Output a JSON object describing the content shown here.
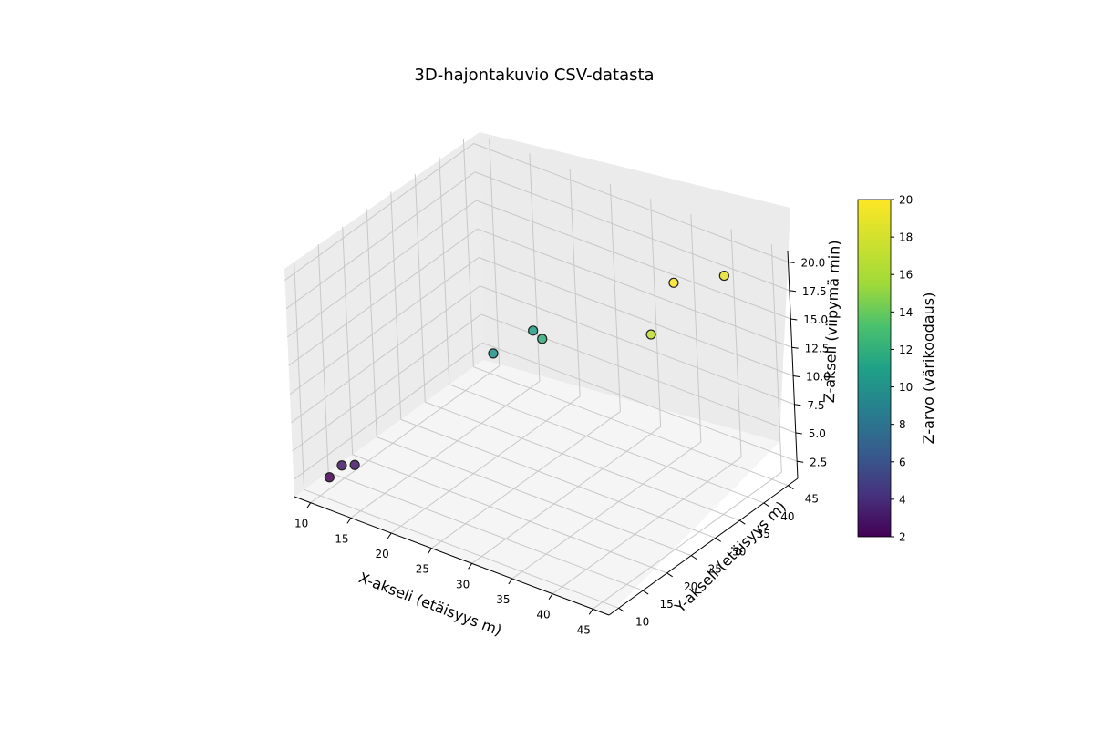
{
  "chart_data": {
    "type": "scatter",
    "title": "3D-hajontakuvio CSV-datasta",
    "xlabel": "X-akseli (etäisyys m)",
    "ylabel": "Y-akseli (etäisyys m)",
    "zlabel": "Z-akseli (viipymä min)",
    "colorbar_label": "Z-arvo (värikoodaus)",
    "xlim": [
      8,
      47
    ],
    "ylim": [
      8,
      47
    ],
    "zlim": [
      1,
      21
    ],
    "clim": [
      2,
      20
    ],
    "x_ticks": [
      10,
      15,
      20,
      25,
      30,
      35,
      40,
      45
    ],
    "y_ticks": [
      10,
      15,
      20,
      25,
      30,
      35,
      40,
      45
    ],
    "z_ticks": [
      "2.5",
      "5.0",
      "7.5",
      "10.0",
      "12.5",
      "15.0",
      "17.5",
      "20.0"
    ],
    "colorbar_ticks": [
      2,
      4,
      6,
      8,
      10,
      12,
      14,
      16,
      18,
      20
    ],
    "colormap": "viridis",
    "grid": true,
    "points": [
      {
        "x": 10,
        "y": 12,
        "z": 2
      },
      {
        "x": 11,
        "y": 13,
        "z": 3
      },
      {
        "x": 12,
        "y": 14,
        "z": 3
      },
      {
        "x": 20,
        "y": 30,
        "z": 10
      },
      {
        "x": 25,
        "y": 32,
        "z": 12
      },
      {
        "x": 22,
        "y": 35,
        "z": 11
      },
      {
        "x": 40,
        "y": 30,
        "z": 17
      },
      {
        "x": 40,
        "y": 35,
        "z": 20
      },
      {
        "x": 42,
        "y": 42,
        "z": 19
      }
    ]
  }
}
